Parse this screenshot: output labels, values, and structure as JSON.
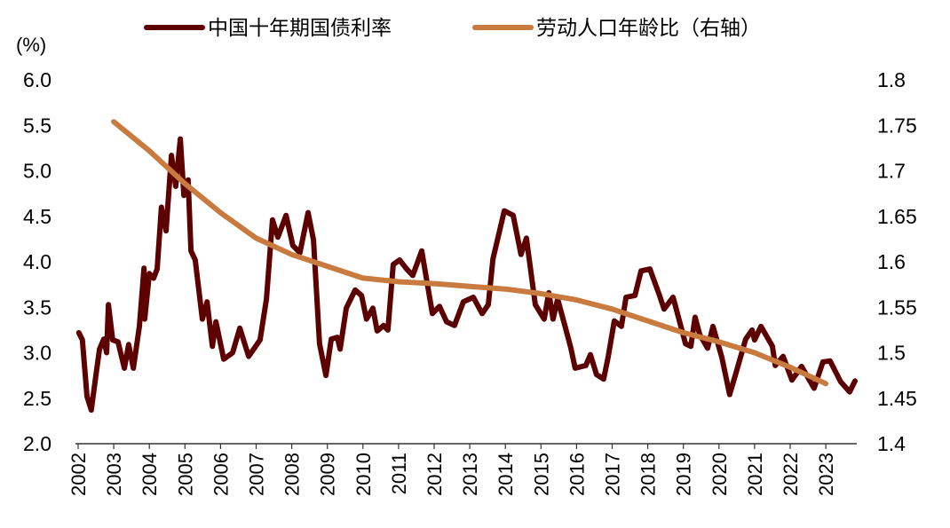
{
  "chart_data": {
    "type": "line",
    "title": "",
    "ylabel_left": "(%)",
    "ylim_left": [
      2.0,
      6.0
    ],
    "yticks_left": [
      "2.0",
      "2.5",
      "3.0",
      "3.5",
      "4.0",
      "4.5",
      "5.0",
      "5.5",
      "6.0"
    ],
    "ylim_right": [
      1.4,
      1.8
    ],
    "yticks_right": [
      "1.4",
      "1.45",
      "1.5",
      "1.55",
      "1.6",
      "1.65",
      "1.7",
      "1.75",
      "1.8"
    ],
    "xlim": [
      2002,
      2024
    ],
    "xticks": [
      "2002",
      "2003",
      "2004",
      "2005",
      "2006",
      "2007",
      "2008",
      "2009",
      "2010",
      "2011",
      "2012",
      "2013",
      "2014",
      "2015",
      "2016",
      "2017",
      "2018",
      "2019",
      "2020",
      "2021",
      "2022",
      "2023"
    ],
    "grid": false,
    "legend_position": "top",
    "series": [
      {
        "name": "中国十年期国债利率",
        "axis": "left",
        "color": "#5c0000",
        "x": [
          2002.02,
          2002.12,
          2002.25,
          2002.37,
          2002.5,
          2002.6,
          2002.72,
          2002.8,
          2002.85,
          2002.97,
          2003.12,
          2003.3,
          2003.42,
          2003.55,
          2003.72,
          2003.85,
          2003.87,
          2004.0,
          2004.12,
          2004.22,
          2004.34,
          2004.47,
          2004.62,
          2004.74,
          2004.87,
          2004.97,
          2005.09,
          2005.17,
          2005.29,
          2005.49,
          2005.62,
          2005.77,
          2005.87,
          2006.09,
          2006.34,
          2006.54,
          2006.79,
          2007.11,
          2007.29,
          2007.46,
          2007.61,
          2007.84,
          2008.03,
          2008.23,
          2008.46,
          2008.61,
          2008.78,
          2008.96,
          2009.11,
          2009.28,
          2009.36,
          2009.53,
          2009.78,
          2009.96,
          2010.1,
          2010.28,
          2010.4,
          2010.58,
          2010.7,
          2010.85,
          2011.03,
          2011.23,
          2011.4,
          2011.65,
          2011.95,
          2012.15,
          2012.35,
          2012.57,
          2012.82,
          2013.1,
          2013.35,
          2013.52,
          2013.65,
          2013.97,
          2014.22,
          2014.44,
          2014.59,
          2014.84,
          2015.09,
          2015.22,
          2015.34,
          2015.47,
          2015.69,
          2015.84,
          2015.96,
          2016.26,
          2016.39,
          2016.56,
          2016.76,
          2016.89,
          2017.06,
          2017.26,
          2017.39,
          2017.64,
          2017.81,
          2018.06,
          2018.33,
          2018.46,
          2018.71,
          2019.06,
          2019.21,
          2019.33,
          2019.46,
          2019.68,
          2019.83,
          2020.08,
          2020.3,
          2020.5,
          2020.75,
          2020.93,
          2021.0,
          2021.18,
          2021.5,
          2021.58,
          2021.8,
          2022.05,
          2022.32,
          2022.67,
          2022.92,
          2023.12,
          2023.42,
          2023.67,
          2023.82
        ],
        "y": [
          3.22,
          3.14,
          2.52,
          2.37,
          2.75,
          3.04,
          3.15,
          3.0,
          3.53,
          3.14,
          3.12,
          2.83,
          3.09,
          2.83,
          3.29,
          3.93,
          3.37,
          3.87,
          3.82,
          3.92,
          4.6,
          4.34,
          5.17,
          4.83,
          5.35,
          4.73,
          4.9,
          4.12,
          4.02,
          3.37,
          3.56,
          3.07,
          3.34,
          2.93,
          3.0,
          3.27,
          2.96,
          3.14,
          3.59,
          4.46,
          4.27,
          4.51,
          4.18,
          4.1,
          4.54,
          4.24,
          3.1,
          2.75,
          3.15,
          3.17,
          3.04,
          3.49,
          3.69,
          3.63,
          3.37,
          3.49,
          3.24,
          3.3,
          3.25,
          3.97,
          4.02,
          3.92,
          3.85,
          4.12,
          3.43,
          3.51,
          3.34,
          3.3,
          3.56,
          3.61,
          3.43,
          3.53,
          4.03,
          4.56,
          4.51,
          4.08,
          4.26,
          3.53,
          3.37,
          3.66,
          3.37,
          3.59,
          3.27,
          3.05,
          2.83,
          2.86,
          2.98,
          2.76,
          2.71,
          2.96,
          3.35,
          3.29,
          3.61,
          3.63,
          3.9,
          3.92,
          3.63,
          3.48,
          3.61,
          3.1,
          3.07,
          3.39,
          3.2,
          3.05,
          3.29,
          2.95,
          2.54,
          2.81,
          3.15,
          3.25,
          3.14,
          3.29,
          3.07,
          2.86,
          2.96,
          2.7,
          2.85,
          2.61,
          2.9,
          2.91,
          2.68,
          2.57,
          2.69
        ]
      },
      {
        "name": "劳动人口年龄比（右轴）",
        "axis": "right",
        "color": "#c87a3f",
        "x": [
          2003,
          2004,
          2005,
          2006,
          2007,
          2008,
          2009,
          2010,
          2011,
          2012,
          2013,
          2014,
          2015,
          2016,
          2017,
          2018,
          2019,
          2020,
          2021,
          2022,
          2023
        ],
        "y": [
          1.754,
          1.722,
          1.686,
          1.654,
          1.626,
          1.608,
          1.595,
          1.582,
          1.578,
          1.576,
          1.573,
          1.57,
          1.565,
          1.558,
          1.548,
          1.535,
          1.522,
          1.512,
          1.5,
          1.484,
          1.466
        ]
      }
    ]
  }
}
